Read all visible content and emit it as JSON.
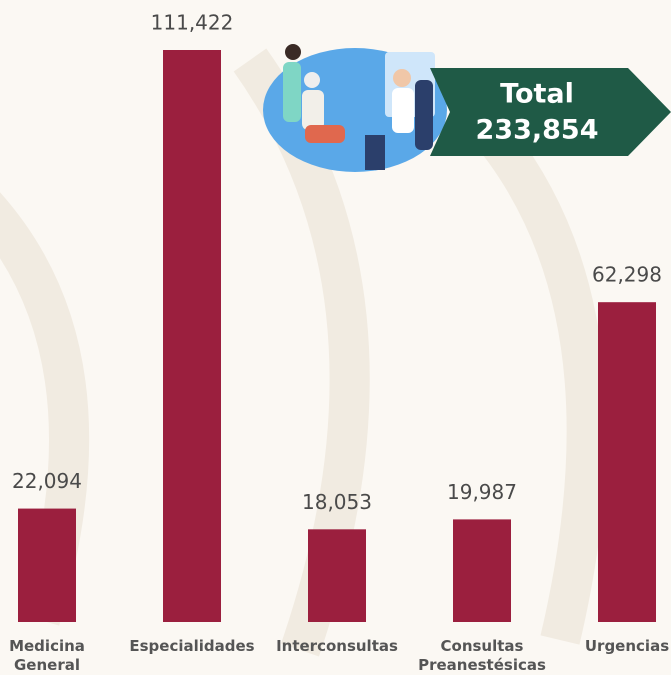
{
  "chart_data": {
    "type": "bar",
    "categories": [
      "Medicina General",
      "Especialidades",
      "Interconsultas",
      "Consultas Preanestésicas",
      "Urgencias"
    ],
    "values": [
      22094,
      111422,
      18053,
      19987,
      62298
    ],
    "value_labels": [
      "22,094",
      "111,422",
      "18,053",
      "19,987",
      "62,298"
    ],
    "color": "#9b1f3e",
    "annotation": {
      "title": "Total",
      "value": 233854,
      "label": "233,854"
    }
  }
}
